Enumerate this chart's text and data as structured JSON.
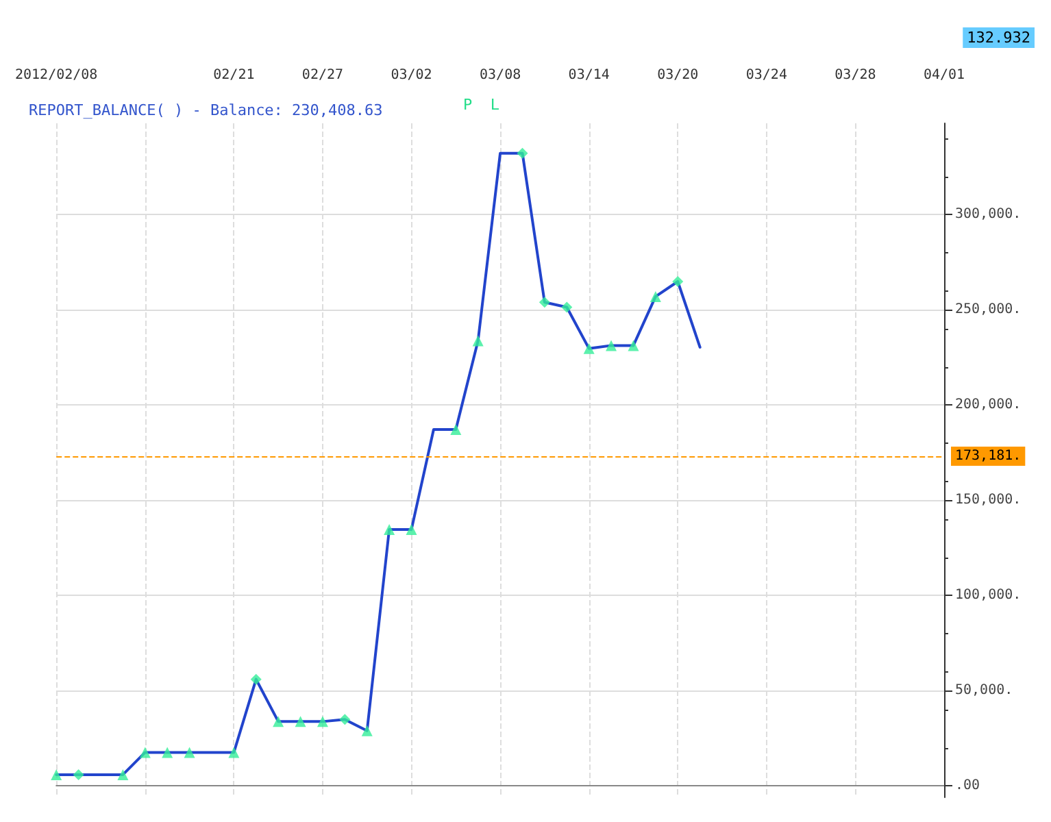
{
  "chart_data": {
    "type": "line",
    "title": "REPORT_BALANCE( ) - Balance: 230,408.63",
    "categories": [
      "2012/02/08",
      null,
      null,
      null,
      null,
      null,
      null,
      null,
      "02/21",
      null,
      null,
      null,
      "02/27",
      null,
      null,
      null,
      "03/02",
      null,
      null,
      null,
      "03/08",
      null,
      null,
      null,
      "03/14",
      null,
      null,
      null,
      "03/20",
      null,
      null,
      null,
      "03/24",
      null,
      null,
      null,
      "03/28",
      null,
      null,
      null,
      "04/01"
    ],
    "series": [
      {
        "color": "#2244cc",
        "marker": "none",
        "values": [
          5900,
          5900,
          5900,
          5900,
          17600,
          17600,
          17600,
          17600,
          17600,
          56000,
          33800,
          33800,
          33800,
          34900,
          29000,
          134700,
          134700,
          187200,
          187200,
          233800,
          332300,
          332300,
          254000,
          251400,
          229700,
          231300,
          231300,
          257000,
          264900,
          230400,
          null,
          null,
          null,
          null,
          null,
          null,
          null,
          null,
          null,
          null,
          null
        ]
      },
      {
        "type": "scatter",
        "color": "#33ee99",
        "marker": "triangle",
        "values": [
          5900,
          null,
          null,
          5900,
          17600,
          17600,
          17600,
          null,
          17600,
          null,
          33800,
          33800,
          33800,
          null,
          29000,
          134700,
          134700,
          null,
          187200,
          233800,
          null,
          null,
          null,
          null,
          229700,
          231300,
          231300,
          257000,
          null,
          null,
          null,
          null,
          null,
          null,
          null,
          null,
          null,
          null,
          null,
          null,
          null
        ]
      },
      {
        "type": "scatter",
        "color": "#33ee99",
        "marker": "diamond",
        "values": [
          null,
          5900,
          null,
          null,
          null,
          null,
          null,
          null,
          null,
          56000,
          null,
          null,
          null,
          34900,
          null,
          null,
          null,
          null,
          null,
          null,
          null,
          332300,
          254000,
          251400,
          null,
          null,
          null,
          null,
          264900,
          null,
          null,
          null,
          null,
          null,
          null,
          null,
          null,
          null,
          null,
          null,
          null
        ]
      }
    ],
    "ylim": [
      -6000,
      348000
    ],
    "yticks": [
      {
        "value": 0,
        "label": ".00"
      },
      {
        "value": 50000,
        "label": "50,000."
      },
      {
        "value": 100000,
        "label": "100,000."
      },
      {
        "value": 150000,
        "label": "150,000."
      },
      {
        "value": 200000,
        "label": "200,000."
      },
      {
        "value": 250000,
        "label": "250,000."
      },
      {
        "value": 300000,
        "label": "300,000."
      }
    ],
    "ref_lines": [
      {
        "axis": "y",
        "value": 173181,
        "label": "173,181.",
        "color": "#ff9900",
        "line_style": "dashed"
      }
    ],
    "annotations": [
      "P  L",
      "132.932"
    ],
    "grid": true
  }
}
